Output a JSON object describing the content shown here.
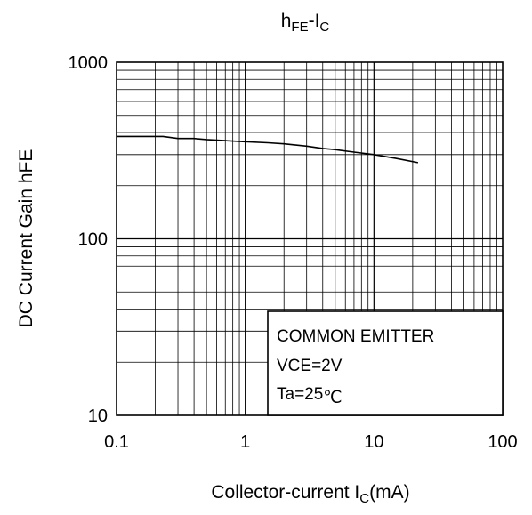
{
  "chart_data": {
    "type": "line",
    "title": {
      "main": "h",
      "sub1": "FE",
      "mid": "-I",
      "sub2": "C"
    },
    "xlabel": {
      "main": "Collector-current I",
      "sub": "C",
      "tail": "(mA)"
    },
    "ylabel": "DC Current Gain hFE",
    "x_scale": "log",
    "y_scale": "log",
    "xlim": [
      0.1,
      100
    ],
    "ylim": [
      10,
      1000
    ],
    "x_ticks": [
      {
        "value": 0.1,
        "label": "0.1"
      },
      {
        "value": 1,
        "label": "1"
      },
      {
        "value": 10,
        "label": "10"
      },
      {
        "value": 100,
        "label": "100"
      }
    ],
    "y_ticks": [
      {
        "value": 10,
        "label": "10"
      },
      {
        "value": 100,
        "label": "100"
      },
      {
        "value": 1000,
        "label": "1000"
      }
    ],
    "grid": true,
    "line_color": "#000000",
    "series": [
      {
        "x": [
          0.1,
          0.15,
          0.23,
          0.3,
          0.4,
          0.5,
          0.7,
          1,
          1.5,
          2,
          3,
          4,
          5,
          7,
          10,
          15,
          22
        ],
        "y": [
          380,
          380,
          380,
          370,
          370,
          365,
          360,
          355,
          350,
          345,
          335,
          325,
          320,
          310,
          300,
          285,
          270
        ]
      }
    ],
    "legend_box": {
      "position": "bottom-right",
      "lines": [
        "COMMON EMITTER",
        "VCE=2V"
      ],
      "ta": {
        "main": "Ta=25",
        "unit": "℃"
      }
    }
  }
}
